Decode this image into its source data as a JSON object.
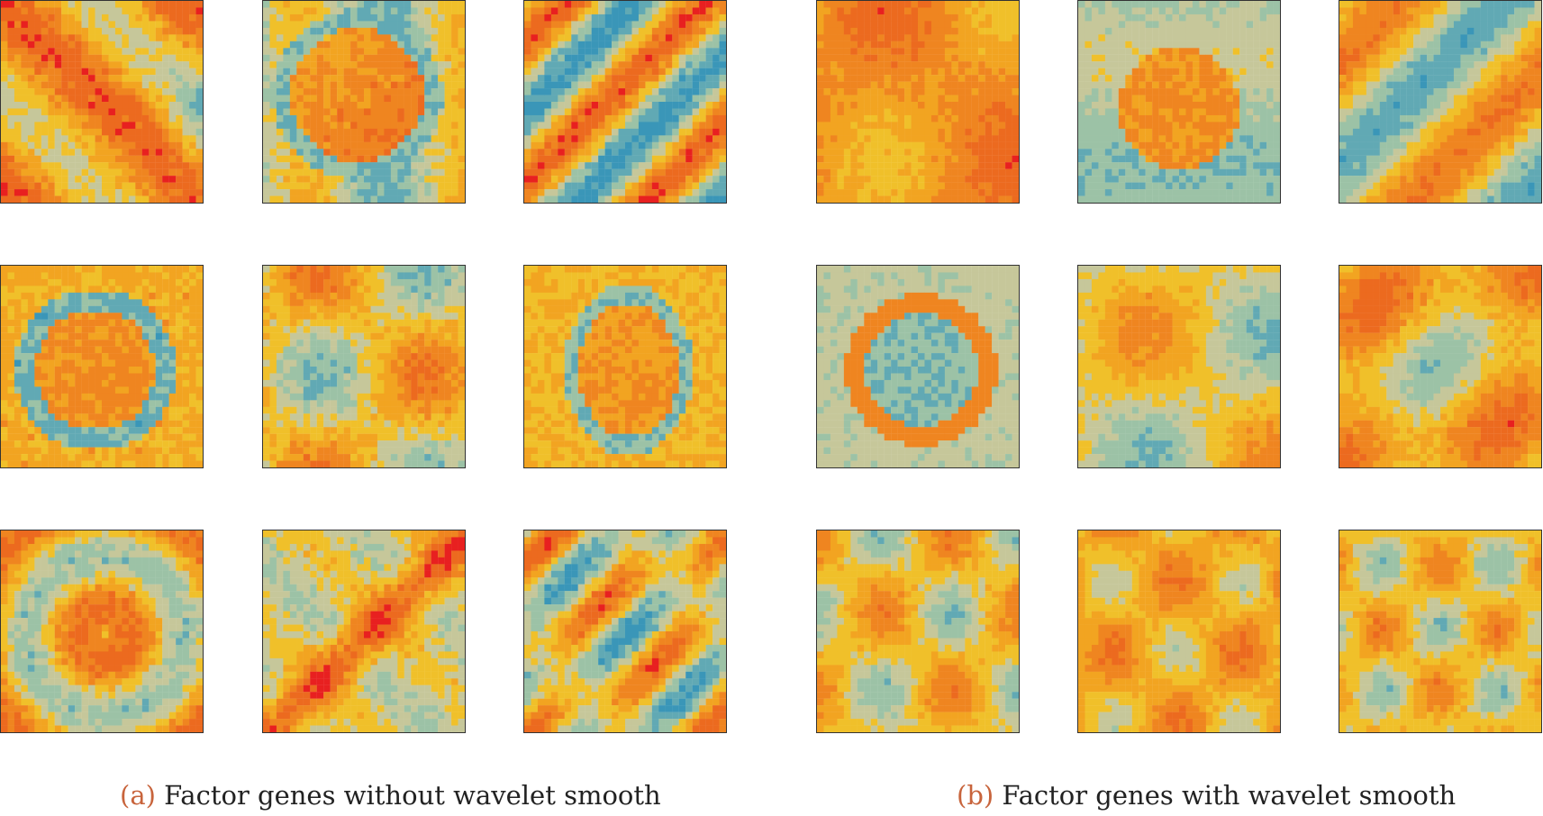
{
  "figure": {
    "panels": [
      {
        "caption_tag": "(a)",
        "caption_text": "Factor genes without wavelet smooth",
        "maps": [
          {
            "pattern": "diagonal-cross"
          },
          {
            "pattern": "circle"
          },
          {
            "pattern": "diagonal-stripes"
          },
          {
            "pattern": "ring"
          },
          {
            "pattern": "quadrant-blocks"
          },
          {
            "pattern": "ellipse-ring"
          },
          {
            "pattern": "patchy-rings"
          },
          {
            "pattern": "anti-diagonal-band"
          },
          {
            "pattern": "diagonal-wedges"
          }
        ]
      },
      {
        "caption_tag": "(b)",
        "caption_text": "Factor genes with wavelet smooth",
        "maps": [
          {
            "pattern": "smooth-warm"
          },
          {
            "pattern": "smooth-circle"
          },
          {
            "pattern": "smooth-diagonal"
          },
          {
            "pattern": "smooth-ring"
          },
          {
            "pattern": "smooth-blobs"
          },
          {
            "pattern": "smooth-ellipse"
          },
          {
            "pattern": "smooth-noise-1"
          },
          {
            "pattern": "smooth-noise-2"
          },
          {
            "pattern": "smooth-noise-3"
          }
        ]
      }
    ],
    "colormap": [
      "#3a96b8",
      "#61a9b4",
      "#9cc2a6",
      "#c6c79a",
      "#f0c02a",
      "#f2a421",
      "#ef8520",
      "#ec6a1f",
      "#e82020"
    ]
  }
}
